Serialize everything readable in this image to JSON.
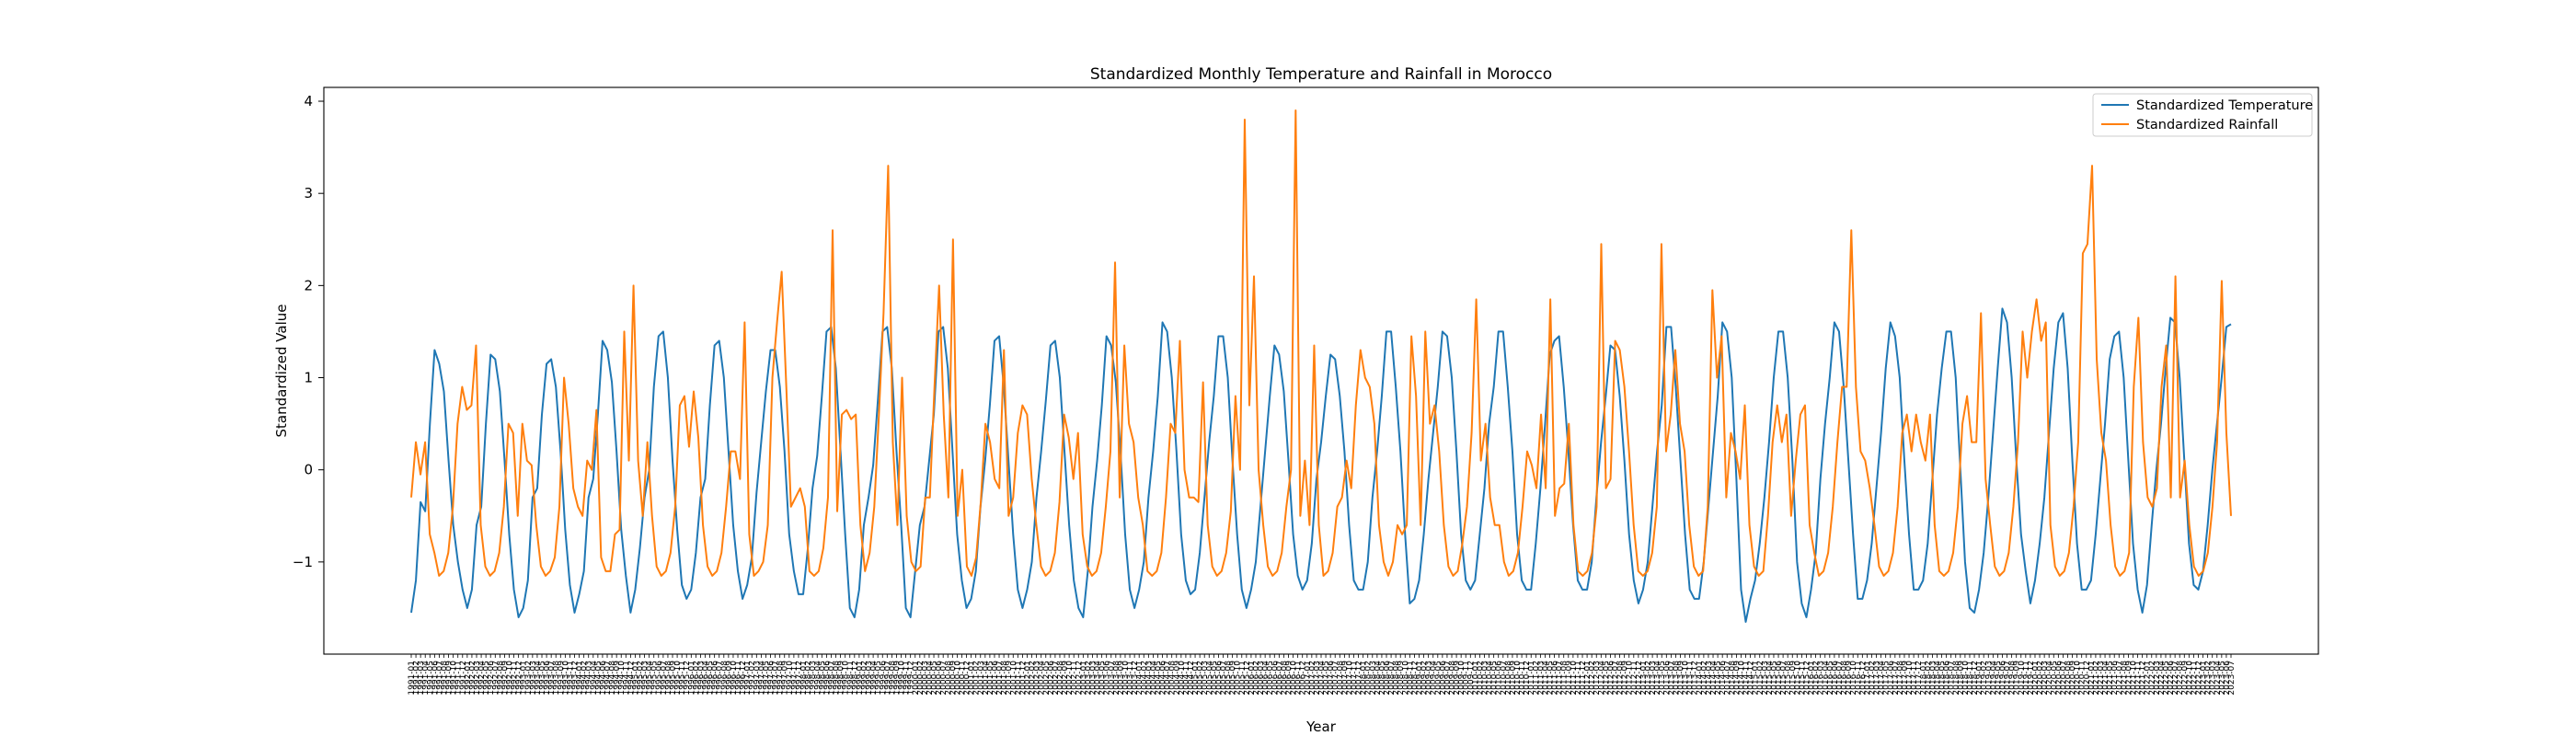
{
  "chart_data": {
    "type": "line",
    "title": "Standardized Monthly Temperature and Rainfall in Morocco",
    "xlabel": "Year",
    "ylabel": "Standardized Value",
    "ylim": [
      -2.0,
      4.15
    ],
    "yticks": [
      -1,
      0,
      1,
      2,
      3,
      4
    ],
    "grid": false,
    "legend_position": "top-right",
    "x_start": "1991-01",
    "x_end": "2022-12",
    "series": [
      {
        "name": "Standardized Temperature",
        "color": "#1f77b4",
        "values": [
          -1.55,
          -1.2,
          -0.35,
          -0.45,
          0.5,
          1.3,
          1.15,
          0.85,
          0.1,
          -0.6,
          -1.0,
          -1.3,
          -1.5,
          -1.3,
          -0.6,
          -0.4,
          0.5,
          1.25,
          1.2,
          0.85,
          0.1,
          -0.7,
          -1.3,
          -1.6,
          -1.5,
          -1.2,
          -0.3,
          -0.2,
          0.6,
          1.15,
          1.2,
          0.9,
          0.2,
          -0.65,
          -1.25,
          -1.55,
          -1.35,
          -1.1,
          -0.3,
          -0.1,
          0.6,
          1.4,
          1.3,
          0.95,
          0.2,
          -0.65,
          -1.15,
          -1.55,
          -1.3,
          -0.85,
          -0.3,
          0.0,
          0.9,
          1.45,
          1.5,
          1.0,
          0.1,
          -0.65,
          -1.25,
          -1.4,
          -1.3,
          -0.9,
          -0.3,
          -0.1,
          0.7,
          1.35,
          1.4,
          1.0,
          0.2,
          -0.6,
          -1.1,
          -1.4,
          -1.25,
          -0.95,
          -0.25,
          0.3,
          0.85,
          1.3,
          1.3,
          0.9,
          0.2,
          -0.7,
          -1.1,
          -1.35,
          -1.35,
          -0.85,
          -0.2,
          0.15,
          0.8,
          1.5,
          1.55,
          1.1,
          0.2,
          -0.7,
          -1.5,
          -1.6,
          -1.3,
          -0.6,
          -0.3,
          0.05,
          0.75,
          1.5,
          1.55,
          1.1,
          0.2,
          -0.6,
          -1.5,
          -1.6,
          -1.1,
          -0.6,
          -0.4,
          0.1,
          0.6,
          1.5,
          1.55,
          1.1,
          0.2,
          -0.7,
          -1.2,
          -1.5,
          -1.4,
          -1.1,
          -0.4,
          0.1,
          0.7,
          1.4,
          1.45,
          0.9,
          0.1,
          -0.7,
          -1.3,
          -1.5,
          -1.3,
          -1.0,
          -0.3,
          0.2,
          0.75,
          1.35,
          1.4,
          1.0,
          0.2,
          -0.6,
          -1.2,
          -1.5,
          -1.6,
          -1.1,
          -0.4,
          0.1,
          0.7,
          1.45,
          1.35,
          0.95,
          0.2,
          -0.7,
          -1.3,
          -1.5,
          -1.3,
          -1.0,
          -0.3,
          0.2,
          0.8,
          1.6,
          1.5,
          1.0,
          0.2,
          -0.7,
          -1.2,
          -1.35,
          -1.3,
          -0.9,
          -0.3,
          0.3,
          0.8,
          1.45,
          1.45,
          1.0,
          0.1,
          -0.7,
          -1.3,
          -1.5,
          -1.3,
          -1.0,
          -0.4,
          0.2,
          0.8,
          1.35,
          1.25,
          0.85,
          0.1,
          -0.7,
          -1.15,
          -1.3,
          -1.2,
          -0.8,
          -0.1,
          0.3,
          0.8,
          1.25,
          1.2,
          0.8,
          0.2,
          -0.6,
          -1.2,
          -1.3,
          -1.3,
          -1.0,
          -0.3,
          0.2,
          0.8,
          1.5,
          1.5,
          0.9,
          0.2,
          -0.7,
          -1.45,
          -1.4,
          -1.2,
          -0.7,
          -0.1,
          0.4,
          0.9,
          1.5,
          1.45,
          1.0,
          0.2,
          -0.7,
          -1.2,
          -1.3,
          -1.2,
          -0.7,
          -0.2,
          0.5,
          0.9,
          1.5,
          1.5,
          0.9,
          0.2,
          -0.7,
          -1.2,
          -1.3,
          -1.3,
          -0.8,
          -0.2,
          0.5,
          1.25,
          1.4,
          1.45,
          0.9,
          0.2,
          -0.6,
          -1.2,
          -1.3,
          -1.3,
          -1.0,
          -0.3,
          0.3,
          0.8,
          1.35,
          1.3,
          0.8,
          0.1,
          -0.7,
          -1.2,
          -1.45,
          -1.3,
          -1.0,
          -0.4,
          0.2,
          0.7,
          1.55,
          1.55,
          0.9,
          0.1,
          -0.7,
          -1.3,
          -1.4,
          -1.4,
          -1.0,
          -0.4,
          0.2,
          0.8,
          1.6,
          1.5,
          1.0,
          -0.1,
          -1.3,
          -1.65,
          -1.4,
          -1.2,
          -0.8,
          -0.3,
          0.3,
          1.0,
          1.5,
          1.5,
          1.0,
          0.1,
          -1.0,
          -1.45,
          -1.6,
          -1.3,
          -0.9,
          -0.1,
          0.5,
          1.0,
          1.6,
          1.5,
          0.9,
          0.1,
          -0.7,
          -1.4,
          -1.4,
          -1.2,
          -0.8,
          -0.2,
          0.4,
          1.1,
          1.6,
          1.45,
          1.0,
          0.1,
          -0.7,
          -1.3,
          -1.3,
          -1.2,
          -0.8,
          -0.1,
          0.6,
          1.1,
          1.5,
          1.5,
          1.0,
          0.0,
          -1.0,
          -1.5,
          -1.55,
          -1.3,
          -0.9,
          -0.3,
          0.4,
          1.1,
          1.75,
          1.6,
          1.0,
          0.1,
          -0.7,
          -1.1,
          -1.45,
          -1.2,
          -0.8,
          -0.3,
          0.4,
          1.1,
          1.6,
          1.7,
          1.1,
          0.1,
          -0.8,
          -1.3,
          -1.3,
          -1.2,
          -0.7,
          -0.1,
          0.5,
          1.2,
          1.45,
          1.5,
          1.0,
          0.1,
          -0.8,
          -1.3,
          -1.55,
          -1.25,
          -0.6,
          0.0,
          0.5,
          1.1,
          1.65,
          1.6,
          1.0,
          0.1,
          -0.8,
          -1.25,
          -1.3,
          -1.1,
          -0.6,
          0.0,
          0.5,
          1.0,
          1.55,
          1.58
        ]
      },
      {
        "name": "Standardized Rainfall",
        "color": "#ff7f0e",
        "values": [
          -0.3,
          0.3,
          -0.05,
          0.3,
          -0.7,
          -0.9,
          -1.15,
          -1.1,
          -0.9,
          -0.4,
          0.5,
          0.9,
          0.65,
          0.7,
          1.35,
          -0.6,
          -1.05,
          -1.15,
          -1.1,
          -0.9,
          -0.4,
          0.5,
          0.4,
          -0.5,
          0.5,
          0.1,
          0.05,
          -0.6,
          -1.05,
          -1.15,
          -1.1,
          -0.95,
          -0.4,
          1.0,
          0.5,
          -0.2,
          -0.4,
          -0.5,
          0.1,
          0.0,
          0.65,
          -0.95,
          -1.1,
          -1.1,
          -0.7,
          -0.65,
          1.5,
          0.1,
          2.0,
          0.1,
          -0.5,
          0.3,
          -0.5,
          -1.05,
          -1.15,
          -1.1,
          -0.9,
          -0.4,
          0.7,
          0.8,
          0.25,
          0.85,
          0.35,
          -0.6,
          -1.05,
          -1.15,
          -1.1,
          -0.9,
          -0.4,
          0.2,
          0.2,
          -0.1,
          1.6,
          -0.7,
          -1.15,
          -1.1,
          -1.0,
          -0.6,
          1.0,
          1.6,
          2.15,
          0.9,
          -0.4,
          -0.3,
          -0.2,
          -0.4,
          -1.1,
          -1.15,
          -1.1,
          -0.85,
          -0.3,
          2.6,
          -0.45,
          0.6,
          0.65,
          0.55,
          0.6,
          -0.6,
          -1.1,
          -0.9,
          -0.4,
          0.6,
          1.7,
          3.3,
          0.3,
          -0.6,
          1.0,
          -0.5,
          -1.0,
          -1.1,
          -1.05,
          -0.3,
          -0.3,
          0.9,
          2.0,
          0.6,
          -0.3,
          2.5,
          -0.5,
          0.0,
          -1.05,
          -1.15,
          -0.95,
          -0.35,
          0.5,
          0.3,
          -0.1,
          -0.2,
          1.3,
          -0.5,
          -0.3,
          0.4,
          0.7,
          0.6,
          -0.1,
          -0.6,
          -1.05,
          -1.15,
          -1.1,
          -0.9,
          -0.35,
          0.6,
          0.35,
          -0.1,
          0.4,
          -0.7,
          -1.05,
          -1.15,
          -1.1,
          -0.9,
          -0.4,
          0.2,
          2.25,
          -0.3,
          1.35,
          0.5,
          0.3,
          -0.3,
          -0.6,
          -1.1,
          -1.15,
          -1.1,
          -0.9,
          -0.3,
          0.5,
          0.4,
          1.4,
          0.0,
          -0.3,
          -0.3,
          -0.35,
          0.95,
          -0.6,
          -1.05,
          -1.15,
          -1.1,
          -0.9,
          -0.45,
          0.8,
          0.0,
          3.8,
          0.7,
          2.1,
          0.0,
          -0.6,
          -1.05,
          -1.15,
          -1.1,
          -0.9,
          -0.4,
          0.0,
          3.9,
          -0.5,
          0.1,
          -0.6,
          1.35,
          -0.6,
          -1.15,
          -1.1,
          -0.9,
          -0.4,
          -0.3,
          0.1,
          -0.2,
          0.7,
          1.3,
          1.0,
          0.9,
          0.5,
          -0.6,
          -1.0,
          -1.15,
          -1.0,
          -0.6,
          -0.7,
          -0.6,
          1.45,
          0.8,
          -0.6,
          1.5,
          0.5,
          0.7,
          0.2,
          -0.6,
          -1.05,
          -1.15,
          -1.1,
          -0.8,
          -0.4,
          0.4,
          1.85,
          0.1,
          0.5,
          -0.3,
          -0.6,
          -0.6,
          -1.0,
          -1.15,
          -1.1,
          -0.9,
          -0.4,
          0.2,
          0.05,
          -0.2,
          0.6,
          -0.2,
          1.85,
          -0.5,
          -0.2,
          -0.15,
          0.5,
          -0.6,
          -1.1,
          -1.15,
          -1.1,
          -0.9,
          -0.4,
          2.45,
          -0.2,
          -0.1,
          1.4,
          1.3,
          0.9,
          0.2,
          -0.6,
          -1.1,
          -1.15,
          -1.1,
          -0.9,
          -0.4,
          2.45,
          0.2,
          0.6,
          1.3,
          0.5,
          0.2,
          -0.6,
          -1.05,
          -1.15,
          -1.1,
          -0.4,
          1.95,
          1.0,
          1.45,
          -0.3,
          0.4,
          0.2,
          -0.1,
          0.7,
          -0.6,
          -1.05,
          -1.15,
          -1.1,
          -0.5,
          0.3,
          0.7,
          0.3,
          0.6,
          -0.5,
          0.1,
          0.6,
          0.7,
          -0.6,
          -0.9,
          -1.15,
          -1.1,
          -0.9,
          -0.4,
          0.3,
          0.9,
          0.9,
          2.6,
          0.9,
          0.2,
          0.1,
          -0.2,
          -0.6,
          -1.05,
          -1.15,
          -1.1,
          -0.9,
          -0.4,
          0.4,
          0.6,
          0.2,
          0.6,
          0.3,
          0.1,
          0.6,
          -0.6,
          -1.1,
          -1.15,
          -1.1,
          -0.9,
          -0.4,
          0.5,
          0.8,
          0.3,
          0.3,
          1.7,
          -0.1,
          -0.6,
          -1.05,
          -1.15,
          -1.1,
          -0.9,
          -0.4,
          0.3,
          1.5,
          1.0,
          1.5,
          1.85,
          1.4,
          1.6,
          -0.6,
          -1.05,
          -1.15,
          -1.1,
          -0.9,
          -0.4,
          0.3,
          2.35,
          2.45,
          3.3,
          1.2,
          0.4,
          0.1,
          -0.6,
          -1.05,
          -1.15,
          -1.1,
          -0.9,
          0.9,
          1.65,
          0.3,
          -0.3,
          -0.4,
          -0.2,
          0.9,
          1.35,
          -0.3,
          2.1,
          -0.3,
          0.1,
          -0.6,
          -1.05,
          -1.15,
          -1.1,
          -0.9,
          -0.4,
          0.3,
          2.05,
          0.4,
          -0.5
        ]
      }
    ]
  }
}
